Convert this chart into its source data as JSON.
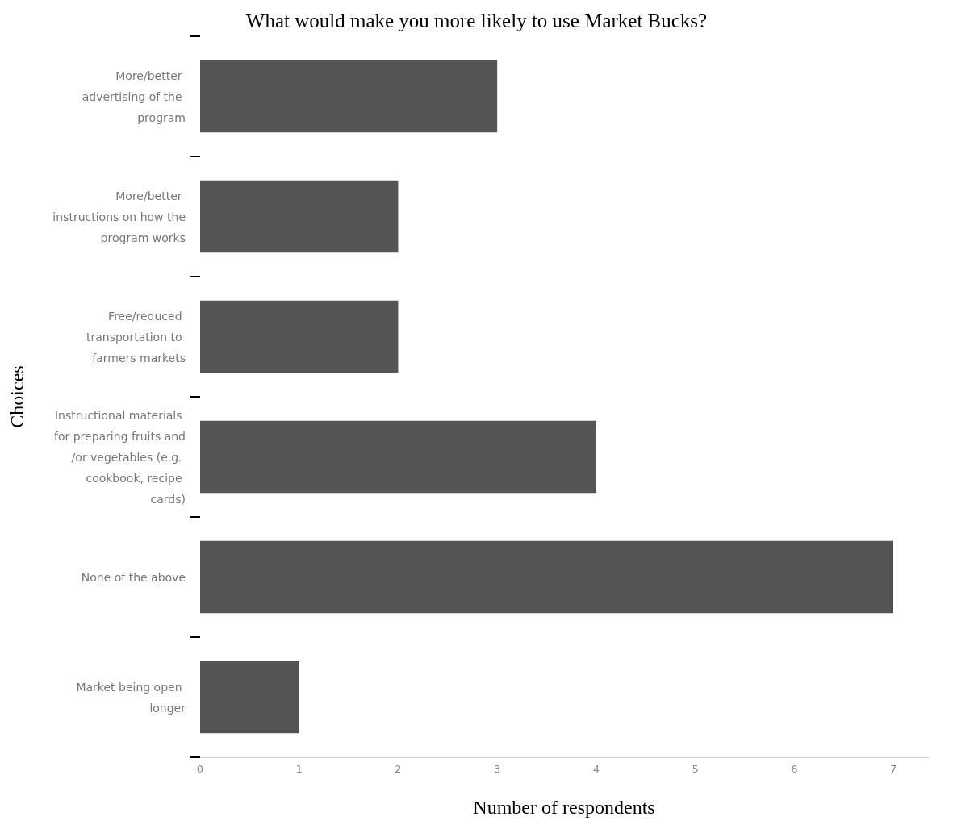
{
  "chart_data": {
    "type": "bar",
    "orientation": "horizontal",
    "title": "What would make you more likely to use Market Bucks?",
    "xlabel": "Number of respondents",
    "ylabel": "Choices",
    "categories": [
      "More/better advertising of the program",
      "More/better instructions on how the program works",
      "Free/reduced transportation to farmers markets",
      "Instructional materials for preparing fruits and/or vegetables (e.g. cookbook, recipe cards)",
      "None of the above",
      "Market being open longer"
    ],
    "values": [
      3,
      2,
      2,
      4,
      7,
      1
    ],
    "color": "#545454",
    "xlim": [
      0,
      7.35
    ],
    "xticks": [
      0,
      1,
      2,
      3,
      4,
      5,
      6,
      7
    ],
    "grid": false
  }
}
